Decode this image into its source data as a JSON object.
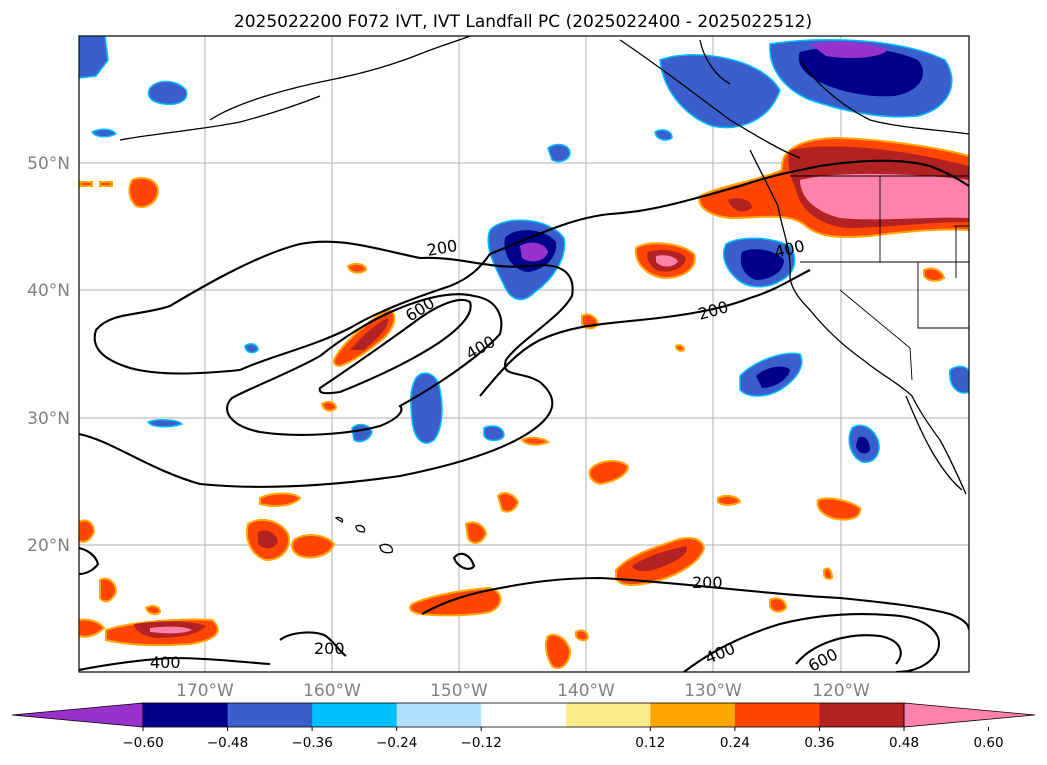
{
  "title": "2025022200 F072 IVT, IVT Landfall PC (2025022400 - 2025022512)",
  "map": {
    "lat_labels": [
      "50°N",
      "40°N",
      "30°N",
      "20°N"
    ],
    "lon_labels": [
      "170°W",
      "160°W",
      "150°W",
      "140°W",
      "130°W",
      "120°W"
    ],
    "gridlines": true,
    "contour_labels": [
      "200",
      "600",
      "400",
      "200",
      "400",
      "200",
      "400",
      "200",
      "400",
      "600"
    ]
  },
  "colorbar": {
    "tick_labels": [
      "−0.60",
      "−0.48",
      "−0.36",
      "−0.24",
      "−0.12",
      "0.12",
      "0.24",
      "0.36",
      "0.48",
      "0.60"
    ],
    "colors": [
      "#9932CC",
      "#00008B",
      "#3A5FCD",
      "#00BFFF",
      "#B0E2FF",
      "#FFFFFF",
      "#FFEC8B",
      "#FFA500",
      "#FF4500",
      "#B22222",
      "#FF82AB"
    ]
  }
}
